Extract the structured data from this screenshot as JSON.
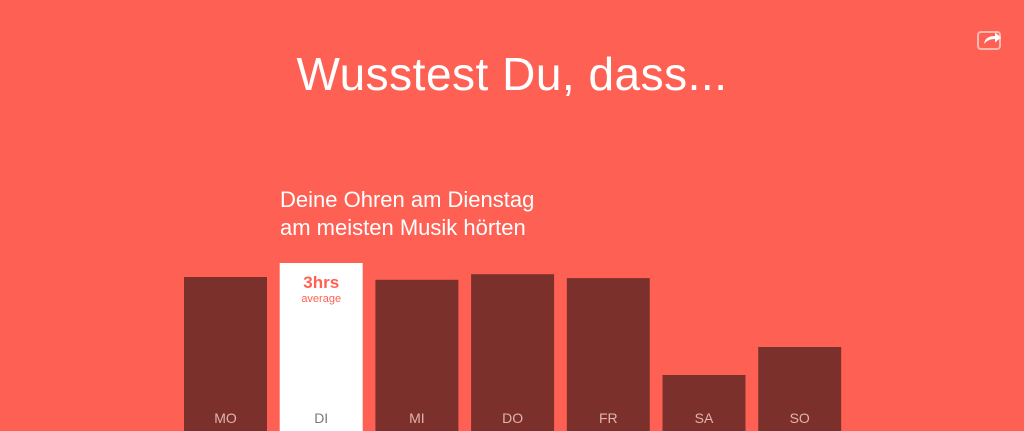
{
  "header": {
    "title": "Wusstest Du, dass...",
    "share_icon": "share-icon"
  },
  "subtitle": {
    "line1": "Deine Ohren am Dienstag",
    "line2": "am meisten Musik hörten"
  },
  "colors": {
    "background": "#fe6154",
    "bar": "#7c302c",
    "highlight_bar": "#ffffff",
    "bar_label": "#e2b3ae",
    "highlight_label": "#7a7a7a",
    "highlight_value": "#fe6154"
  },
  "chart_data": {
    "type": "bar",
    "categories": [
      "MO",
      "DI",
      "MI",
      "DO",
      "FR",
      "SA",
      "SO"
    ],
    "values": [
      2.75,
      3.0,
      2.7,
      2.8,
      2.73,
      1.0,
      1.5
    ],
    "highlight_index": 1,
    "highlight_value_label": "3hrs",
    "highlight_sub_label": "average",
    "title": "",
    "xlabel": "",
    "ylabel": "",
    "grid": false,
    "legend": "none"
  }
}
